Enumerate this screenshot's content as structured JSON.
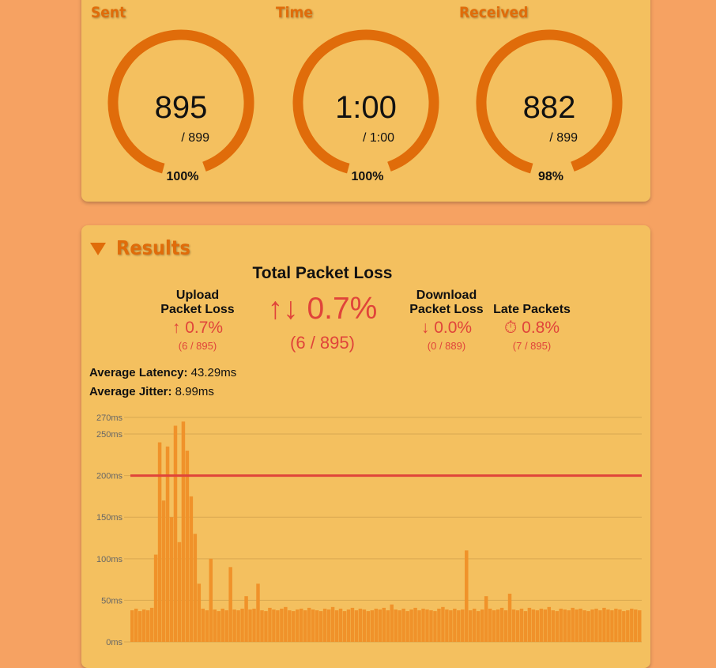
{
  "gauges": [
    {
      "label": "Sent",
      "value": "895",
      "total": "/ 899",
      "percent": "100%"
    },
    {
      "label": "Time",
      "value": "1:00",
      "total": "/ 1:00",
      "percent": "100%"
    },
    {
      "label": "Received",
      "value": "882",
      "total": "/ 899",
      "percent": "98%"
    }
  ],
  "results": {
    "title": "Results",
    "total": {
      "heading": "Total Packet Loss",
      "value": "↑↓ 0.7%",
      "detail": "(6 / 895)"
    },
    "upload": {
      "heading": "Upload Packet Loss",
      "value": "↑ 0.7%",
      "detail": "(6 / 895)"
    },
    "download": {
      "heading": "Download Packet Loss",
      "value": "↓ 0.0%",
      "detail": "(0 / 889)"
    },
    "late": {
      "heading": "Late Packets",
      "value": "⏱ 0.8%",
      "detail": "(7 / 895)"
    },
    "latency": {
      "label": "Average Latency:",
      "value": "43.29ms"
    },
    "jitter": {
      "label": "Average Jitter:",
      "value": "8.99ms"
    }
  },
  "chart_data": {
    "type": "bar",
    "color": "#f0922a",
    "values": [
      38,
      40,
      37,
      39,
      38,
      41,
      105,
      240,
      170,
      235,
      150,
      260,
      120,
      265,
      230,
      175,
      130,
      70,
      40,
      38,
      100,
      39,
      37,
      40,
      38,
      90,
      39,
      38,
      40,
      55,
      39,
      40,
      70,
      38,
      37,
      41,
      39,
      38,
      40,
      42,
      38,
      37,
      39,
      40,
      38,
      41,
      39,
      38,
      37,
      40,
      39,
      42,
      38,
      40,
      37,
      39,
      41,
      38,
      40,
      39,
      37,
      38,
      40,
      39,
      41,
      38,
      45,
      39,
      38,
      40,
      37,
      39,
      41,
      38,
      40,
      39,
      38,
      37,
      40,
      42,
      39,
      38,
      40,
      38,
      39,
      110,
      38,
      40,
      37,
      39,
      55,
      40,
      38,
      39,
      41,
      38,
      58,
      39,
      38,
      40,
      37,
      41,
      39,
      38,
      40,
      39,
      42,
      38,
      37,
      40,
      39,
      38,
      41,
      39,
      40,
      38,
      37,
      39,
      40,
      38,
      41,
      39,
      38,
      40,
      39,
      37,
      38,
      40,
      39,
      38
    ],
    "threshold": 200,
    "threshold_color": "#e0443a",
    "ylim": [
      0,
      270
    ],
    "yticks": [
      {
        "value": 0,
        "label": "0ms"
      },
      {
        "value": 50,
        "label": "50ms"
      },
      {
        "value": 100,
        "label": "100ms"
      },
      {
        "value": 150,
        "label": "150ms"
      },
      {
        "value": 200,
        "label": "200ms"
      },
      {
        "value": 250,
        "label": "250ms"
      },
      {
        "value": 270,
        "label": "270ms"
      }
    ],
    "grid": true
  }
}
